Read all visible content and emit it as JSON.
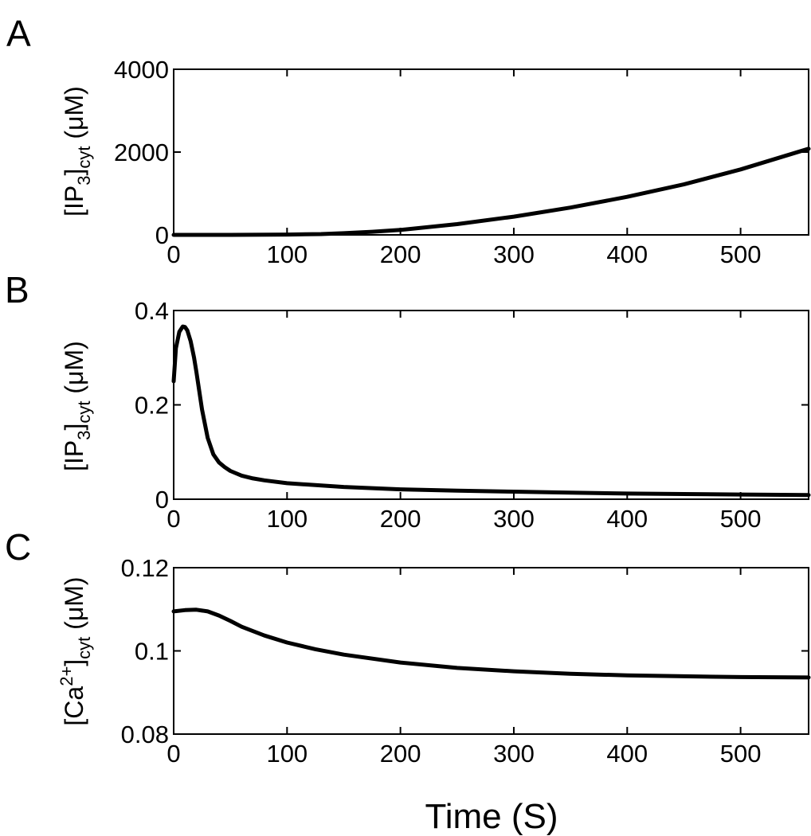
{
  "chart_data": [
    {
      "type": "line",
      "panel_label": "A",
      "ylabel": {
        "base": "[IP",
        "sub1": "3",
        "mid": "]",
        "sub2": "cyt",
        "unit": " (μM)"
      },
      "xlim": [
        0,
        560
      ],
      "ylim": [
        0,
        4000
      ],
      "xticks": [
        "0",
        "100",
        "200",
        "300",
        "400",
        "500"
      ],
      "yticks": [
        "0",
        "2000",
        "4000"
      ],
      "series": [
        {
          "x": [
            0,
            50,
            100,
            130,
            150,
            175,
            200,
            250,
            300,
            350,
            400,
            450,
            500,
            560
          ],
          "y": [
            0,
            0,
            8,
            20,
            40,
            75,
            120,
            260,
            440,
            660,
            920,
            1220,
            1580,
            2080
          ]
        }
      ]
    },
    {
      "type": "line",
      "panel_label": "B",
      "ylabel": {
        "base": "[IP",
        "sub1": "3",
        "mid": "]",
        "sub2": "cyt",
        "unit": " (μM)"
      },
      "xlim": [
        0,
        560
      ],
      "ylim": [
        0,
        0.4
      ],
      "xticks": [
        "0",
        "100",
        "200",
        "300",
        "400",
        "500"
      ],
      "yticks": [
        "0",
        "0.2",
        "0.4"
      ],
      "series": [
        {
          "x": [
            0,
            2,
            5,
            8,
            10,
            12,
            15,
            18,
            20,
            25,
            30,
            35,
            40,
            45,
            50,
            60,
            70,
            80,
            100,
            150,
            200,
            250,
            300,
            350,
            400,
            450,
            500,
            560
          ],
          "y": [
            0.25,
            0.32,
            0.355,
            0.366,
            0.365,
            0.358,
            0.335,
            0.3,
            0.27,
            0.19,
            0.13,
            0.095,
            0.078,
            0.068,
            0.06,
            0.05,
            0.044,
            0.04,
            0.034,
            0.026,
            0.021,
            0.018,
            0.016,
            0.014,
            0.012,
            0.011,
            0.01,
            0.009
          ]
        }
      ]
    },
    {
      "type": "line",
      "panel_label": "C",
      "ylabel": {
        "base": "[Ca",
        "sup": "2+",
        "mid": "]",
        "sub2": "cyt",
        "unit": " (μM)"
      },
      "xlim": [
        0,
        560
      ],
      "ylim": [
        0.08,
        0.12
      ],
      "xticks": [
        "0",
        "100",
        "200",
        "300",
        "400",
        "500"
      ],
      "yticks": [
        "0.08",
        "0.1",
        "0.12"
      ],
      "series": [
        {
          "x": [
            0,
            10,
            20,
            30,
            40,
            50,
            60,
            80,
            100,
            125,
            150,
            200,
            250,
            300,
            350,
            400,
            450,
            500,
            560
          ],
          "y": [
            0.1095,
            0.1098,
            0.1099,
            0.1095,
            0.1085,
            0.1072,
            0.1058,
            0.1037,
            0.102,
            0.1004,
            0.0991,
            0.0972,
            0.0959,
            0.0951,
            0.0945,
            0.0941,
            0.0939,
            0.0937,
            0.0936
          ]
        }
      ]
    }
  ],
  "xlabel": "Time (S)"
}
